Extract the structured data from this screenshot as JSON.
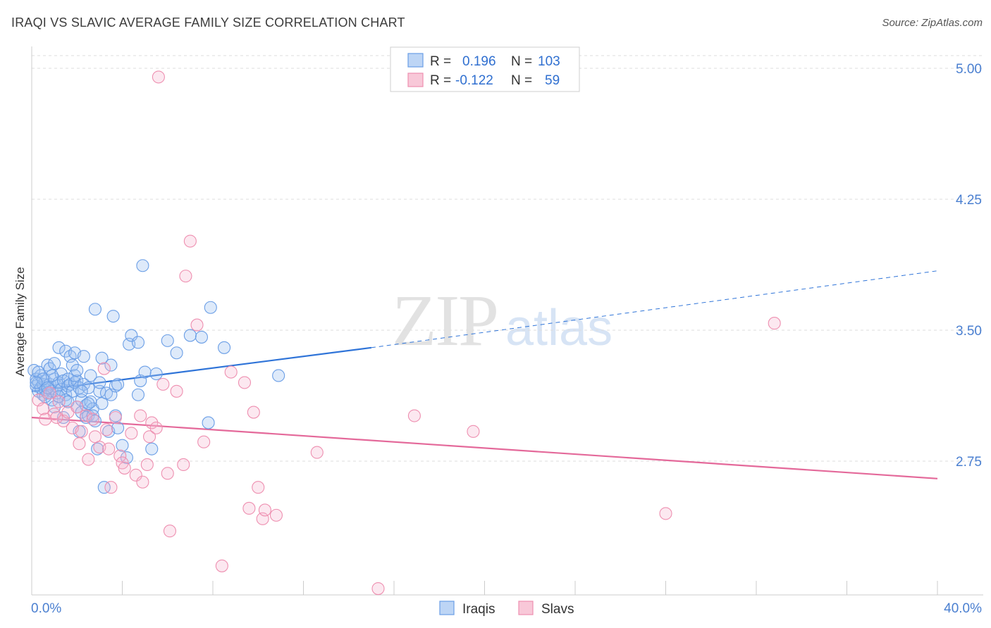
{
  "header": {
    "title": "IRAQI VS SLAVIC AVERAGE FAMILY SIZE CORRELATION CHART",
    "source": "Source: ZipAtlas.com"
  },
  "watermark": {
    "zip": "ZIP",
    "atlas": "atlas"
  },
  "stats_legend": {
    "r_label": "R =",
    "n_label": "N =",
    "rows": [
      {
        "series": "Iraqis",
        "r": "0.196",
        "n": "103",
        "color": "#6a9ee6"
      },
      {
        "series": "Slavs",
        "r": "-0.122",
        "n": "59",
        "color": "#ee8fb0"
      }
    ]
  },
  "chart_data": {
    "type": "scatter",
    "title": "IRAQI VS SLAVIC AVERAGE FAMILY SIZE CORRELATION CHART",
    "xlabel": "",
    "ylabel": "Average Family Size",
    "xlim": [
      0,
      40
    ],
    "ylim": [
      2.0,
      5.15
    ],
    "x_tick_labels": [
      "0.0%",
      "40.0%"
    ],
    "y_ticks": [
      2.75,
      3.5,
      4.25,
      5.0
    ],
    "y_tick_labels": [
      "2.75",
      "3.50",
      "4.25",
      "5.00"
    ],
    "grid": true,
    "legend_position": "top-center",
    "series": [
      {
        "name": "Iraqis",
        "color": "#6a9ee6",
        "trend": {
          "x0": 0,
          "y0": 3.15,
          "x1": 15,
          "y1": 3.4,
          "dashed_to_x": 40,
          "dashed_to_y": 3.84
        },
        "points": [
          [
            0.1,
            3.27
          ],
          [
            0.2,
            3.22
          ],
          [
            0.2,
            3.18
          ],
          [
            0.3,
            3.15
          ],
          [
            0.3,
            3.2
          ],
          [
            0.4,
            3.24
          ],
          [
            0.4,
            3.17
          ],
          [
            0.5,
            3.19
          ],
          [
            0.5,
            3.13
          ],
          [
            0.6,
            3.16
          ],
          [
            0.6,
            3.21
          ],
          [
            0.7,
            3.3
          ],
          [
            0.7,
            3.14
          ],
          [
            0.8,
            3.19
          ],
          [
            0.8,
            3.28
          ],
          [
            0.9,
            3.15
          ],
          [
            0.9,
            3.1
          ],
          [
            1.0,
            3.22
          ],
          [
            1.0,
            3.31
          ],
          [
            1.1,
            3.18
          ],
          [
            1.1,
            3.14
          ],
          [
            1.2,
            3.4
          ],
          [
            1.2,
            3.2
          ],
          [
            1.3,
            3.25
          ],
          [
            1.3,
            3.16
          ],
          [
            1.4,
            3.0
          ],
          [
            1.4,
            3.21
          ],
          [
            1.5,
            3.13
          ],
          [
            1.5,
            3.38
          ],
          [
            1.6,
            3.22
          ],
          [
            1.6,
            3.18
          ],
          [
            1.7,
            3.35
          ],
          [
            1.7,
            3.19
          ],
          [
            1.8,
            3.3
          ],
          [
            1.8,
            3.15
          ],
          [
            1.9,
            3.37
          ],
          [
            1.9,
            3.2
          ],
          [
            2.0,
            3.21
          ],
          [
            2.0,
            3.06
          ],
          [
            2.1,
            2.92
          ],
          [
            2.1,
            3.17
          ],
          [
            2.2,
            3.1
          ],
          [
            2.2,
            3.03
          ],
          [
            2.3,
            3.35
          ],
          [
            2.3,
            3.19
          ],
          [
            2.4,
            3.07
          ],
          [
            2.4,
            3.0
          ],
          [
            2.5,
            3.17
          ],
          [
            2.5,
            3.01
          ],
          [
            2.6,
            3.24
          ],
          [
            2.6,
            3.09
          ],
          [
            2.7,
            3.05
          ],
          [
            2.7,
            3.01
          ],
          [
            2.8,
            3.62
          ],
          [
            2.8,
            2.98
          ],
          [
            2.9,
            2.82
          ],
          [
            3.0,
            3.15
          ],
          [
            3.1,
            3.34
          ],
          [
            3.1,
            3.08
          ],
          [
            3.2,
            2.6
          ],
          [
            3.3,
            3.14
          ],
          [
            3.4,
            2.92
          ],
          [
            3.5,
            3.3
          ],
          [
            3.5,
            3.13
          ],
          [
            3.6,
            3.58
          ],
          [
            3.7,
            3.18
          ],
          [
            3.7,
            3.01
          ],
          [
            3.8,
            3.19
          ],
          [
            3.8,
            2.94
          ],
          [
            4.0,
            2.84
          ],
          [
            4.2,
            2.77
          ],
          [
            4.3,
            3.42
          ],
          [
            4.4,
            3.47
          ],
          [
            4.7,
            3.43
          ],
          [
            4.7,
            3.13
          ],
          [
            4.8,
            3.21
          ],
          [
            4.9,
            3.87
          ],
          [
            5.0,
            3.26
          ],
          [
            5.3,
            2.82
          ],
          [
            5.5,
            3.25
          ],
          [
            6.0,
            3.44
          ],
          [
            6.4,
            3.37
          ],
          [
            7.0,
            3.47
          ],
          [
            7.5,
            3.46
          ],
          [
            7.8,
            2.97
          ],
          [
            7.9,
            3.63
          ],
          [
            8.5,
            3.4
          ],
          [
            10.9,
            3.24
          ],
          [
            0.3,
            3.26
          ],
          [
            0.6,
            3.12
          ],
          [
            0.9,
            3.24
          ],
          [
            1.5,
            3.1
          ],
          [
            1.9,
            3.24
          ],
          [
            2.2,
            3.15
          ],
          [
            1.0,
            3.06
          ],
          [
            0.5,
            3.22
          ],
          [
            0.2,
            3.2
          ],
          [
            0.7,
            3.17
          ],
          [
            1.2,
            3.12
          ],
          [
            1.6,
            3.09
          ],
          [
            2.0,
            3.27
          ],
          [
            2.5,
            3.08
          ],
          [
            3.0,
            3.2
          ]
        ]
      },
      {
        "name": "Slavs",
        "color": "#ee8fb0",
        "trend": {
          "x0": 0,
          "y0": 3.0,
          "x1": 40,
          "y1": 2.65
        },
        "points": [
          [
            0.3,
            3.1
          ],
          [
            0.5,
            3.05
          ],
          [
            0.8,
            3.14
          ],
          [
            1.0,
            3.02
          ],
          [
            1.2,
            3.09
          ],
          [
            1.4,
            2.98
          ],
          [
            1.6,
            3.03
          ],
          [
            1.8,
            2.94
          ],
          [
            2.0,
            3.06
          ],
          [
            2.2,
            2.92
          ],
          [
            2.4,
            3.01
          ],
          [
            2.5,
            2.76
          ],
          [
            2.7,
            2.99
          ],
          [
            2.8,
            2.89
          ],
          [
            3.0,
            2.83
          ],
          [
            3.2,
            3.28
          ],
          [
            3.3,
            2.93
          ],
          [
            3.4,
            2.82
          ],
          [
            3.5,
            2.6
          ],
          [
            3.7,
            3.0
          ],
          [
            3.9,
            2.78
          ],
          [
            4.0,
            2.74
          ],
          [
            4.1,
            2.71
          ],
          [
            4.4,
            2.91
          ],
          [
            4.6,
            2.67
          ],
          [
            4.8,
            3.01
          ],
          [
            4.9,
            2.63
          ],
          [
            5.1,
            2.73
          ],
          [
            5.2,
            2.89
          ],
          [
            5.3,
            2.97
          ],
          [
            5.5,
            2.94
          ],
          [
            5.6,
            4.95
          ],
          [
            5.8,
            3.19
          ],
          [
            6.0,
            2.68
          ],
          [
            6.1,
            2.35
          ],
          [
            6.4,
            3.15
          ],
          [
            6.7,
            2.73
          ],
          [
            6.8,
            3.81
          ],
          [
            7.0,
            4.01
          ],
          [
            7.3,
            3.53
          ],
          [
            7.6,
            2.86
          ],
          [
            8.4,
            2.15
          ],
          [
            8.8,
            3.26
          ],
          [
            9.4,
            3.2
          ],
          [
            9.6,
            2.48
          ],
          [
            9.8,
            3.03
          ],
          [
            10.0,
            2.6
          ],
          [
            10.2,
            2.42
          ],
          [
            10.3,
            2.47
          ],
          [
            10.8,
            2.44
          ],
          [
            12.6,
            2.8
          ],
          [
            15.3,
            2.02
          ],
          [
            16.9,
            3.01
          ],
          [
            19.5,
            2.92
          ],
          [
            28.0,
            2.45
          ],
          [
            32.8,
            3.54
          ],
          [
            1.1,
            3.0
          ],
          [
            2.1,
            2.85
          ],
          [
            0.6,
            2.99
          ]
        ]
      }
    ]
  }
}
